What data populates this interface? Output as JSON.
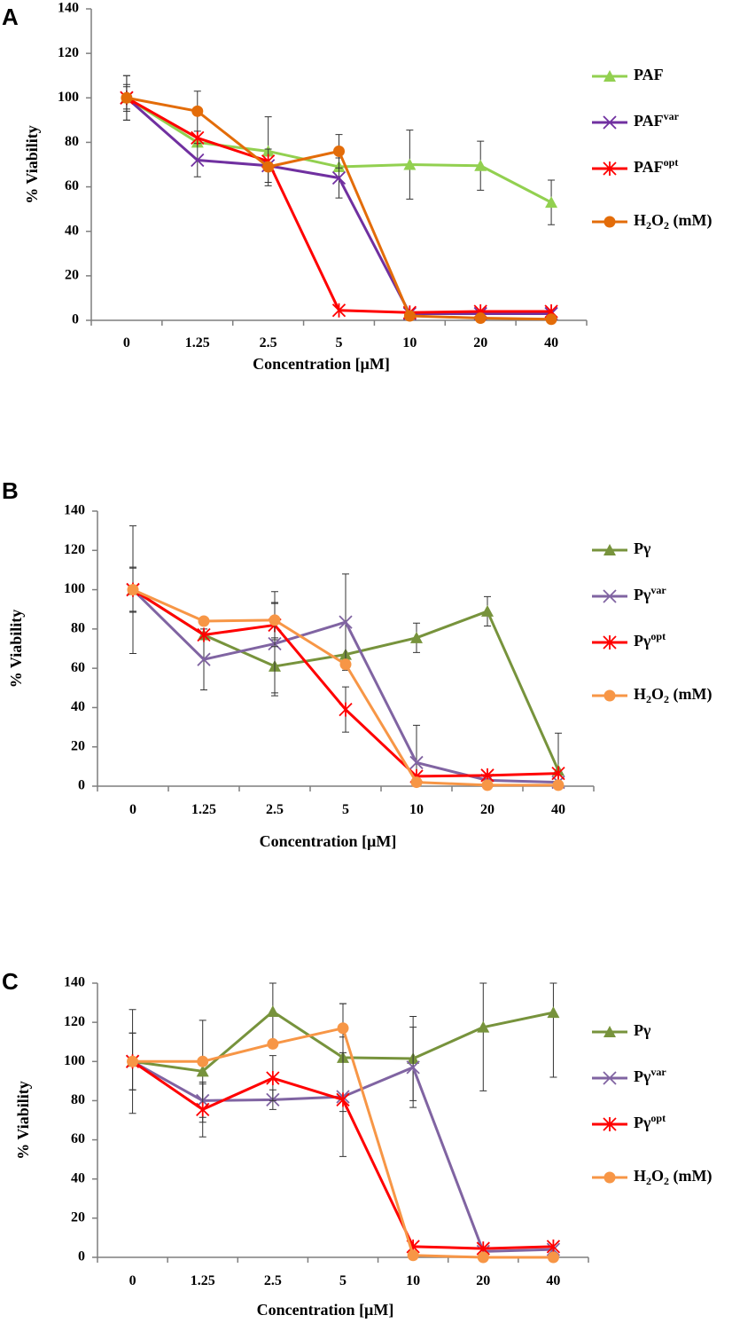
{
  "chart_data": [
    {
      "panel": "A",
      "type": "line",
      "categories": [
        "0",
        "1.25",
        "2.5",
        "5",
        "10",
        "20",
        "40"
      ],
      "xlabel": "Concentration [µM]",
      "ylabel": "% Viability",
      "ylim": [
        0,
        140
      ],
      "yticks": [
        0,
        20,
        40,
        60,
        80,
        100,
        120,
        140
      ],
      "legend_position": "right",
      "series": [
        {
          "name": "PAF",
          "base": "PAF",
          "sup": "",
          "sub": "",
          "suffix": "",
          "color": "#92d050",
          "marker": "triangle",
          "values": [
            100,
            80,
            76,
            69,
            70,
            69.5,
            53
          ],
          "errors": [
            6,
            0,
            15.5,
            0,
            15.5,
            11,
            10
          ]
        },
        {
          "name": "PAFvar",
          "base": "PAF",
          "sup": "var",
          "sub": "",
          "suffix": "",
          "color": "#7030a0",
          "marker": "x",
          "values": [
            100,
            72,
            69.5,
            64,
            3,
            3,
            3
          ],
          "errors": [
            10,
            7.5,
            7.5,
            9,
            0,
            0,
            0
          ]
        },
        {
          "name": "PAFopt",
          "base": "PAF",
          "sup": "opt",
          "sub": "",
          "suffix": "",
          "color": "#ff0000",
          "marker": "asterisk",
          "values": [
            100,
            82,
            71.5,
            4.5,
            3.5,
            4,
            4
          ],
          "errors": [
            5,
            0,
            0,
            0,
            0,
            0,
            0
          ]
        },
        {
          "name": "H2O2 (mM)",
          "base": "H",
          "sup": "",
          "sub": "2",
          "mid": "O",
          "sub2": "2",
          "suffix": " (mM)",
          "color": "#e36c09",
          "marker": "circle",
          "values": [
            100,
            94,
            69,
            76,
            2,
            1,
            0.5
          ],
          "errors": [
            10,
            9,
            0,
            7.5,
            0,
            0,
            0
          ]
        }
      ]
    },
    {
      "panel": "B",
      "type": "line",
      "categories": [
        "0",
        "1.25",
        "2.5",
        "5",
        "10",
        "20",
        "40"
      ],
      "xlabel": "Concentration [µM]",
      "ylabel": "% Viability",
      "ylim": [
        0,
        140
      ],
      "yticks": [
        0,
        20,
        40,
        60,
        80,
        100,
        120,
        140
      ],
      "legend_position": "right",
      "series": [
        {
          "name": "Pγ",
          "base": "Pγ",
          "sup": "",
          "sub": "",
          "suffix": "",
          "color": "#77933c",
          "marker": "triangle",
          "values": [
            100,
            77,
            61,
            67,
            75.5,
            89,
            8
          ],
          "errors": [
            32.5,
            0,
            13.5,
            0,
            7.5,
            7.5,
            19
          ]
        },
        {
          "name": "Pγvar",
          "base": "Pγ",
          "sup": "var",
          "sub": "",
          "suffix": "",
          "color": "#8064a2",
          "marker": "x",
          "values": [
            100,
            64.5,
            72.5,
            83.5,
            12,
            3,
            2
          ],
          "errors": [
            11.5,
            15.5,
            26.5,
            24.5,
            19,
            0,
            0
          ]
        },
        {
          "name": "Pγopt",
          "base": "Pγ",
          "sup": "opt",
          "sub": "",
          "suffix": "",
          "color": "#ff0000",
          "marker": "asterisk",
          "values": [
            100,
            77,
            82,
            39,
            5,
            5.5,
            6.5
          ],
          "errors": [
            11,
            0,
            11,
            11.5,
            0,
            0,
            0
          ]
        },
        {
          "name": "H2O2 (mM)",
          "base": "H",
          "sup": "",
          "sub": "2",
          "mid": "O",
          "sub2": "2",
          "suffix": " (mM)",
          "color": "#f79646",
          "marker": "circle",
          "values": [
            100,
            84,
            84.5,
            62,
            2,
            0.5,
            0.5
          ],
          "errors": [
            0,
            0,
            9,
            0,
            0,
            0,
            0
          ]
        }
      ]
    },
    {
      "panel": "C",
      "type": "line",
      "categories": [
        "0",
        "1.25",
        "2.5",
        "5",
        "10",
        "20",
        "40"
      ],
      "xlabel": "Concentration [µM]",
      "ylabel": "% Viability",
      "ylim": [
        0,
        140
      ],
      "yticks": [
        0,
        20,
        40,
        60,
        80,
        100,
        120,
        140
      ],
      "legend_position": "right",
      "series": [
        {
          "name": "Pγ",
          "base": "Pγ",
          "sup": "",
          "sub": "",
          "suffix": "",
          "color": "#77933c",
          "marker": "triangle",
          "values": [
            100,
            95,
            125.5,
            102,
            101.5,
            117.5,
            125
          ],
          "errors": [
            26.5,
            26,
            14.5,
            27.5,
            21.5,
            32.5,
            33
          ]
        },
        {
          "name": "Pγvar",
          "base": "Pγ",
          "sup": "var",
          "sub": "",
          "suffix": "",
          "color": "#8064a2",
          "marker": "x",
          "values": [
            100,
            80,
            80.5,
            82,
            97,
            3,
            4
          ],
          "errors": [
            14.5,
            8.5,
            5,
            30.5,
            20.5,
            0,
            0
          ]
        },
        {
          "name": "Pγopt",
          "base": "Pγ",
          "sup": "opt",
          "sub": "",
          "suffix": "",
          "color": "#ff0000",
          "marker": "asterisk",
          "values": [
            100,
            75.5,
            91.5,
            80.5,
            5.5,
            4.5,
            5.5
          ],
          "errors": [
            14.5,
            14,
            11.5,
            0,
            0,
            0,
            0
          ]
        },
        {
          "name": "H2O2 (mM)",
          "base": "H",
          "sup": "",
          "sub": "2",
          "mid": "O",
          "sub2": "2",
          "suffix": " (mM)",
          "color": "#f79646",
          "marker": "circle",
          "values": [
            100,
            100,
            109,
            117,
            1,
            0,
            0
          ],
          "errors": [
            0,
            0,
            0,
            12.5,
            0,
            0,
            0
          ]
        }
      ]
    }
  ]
}
